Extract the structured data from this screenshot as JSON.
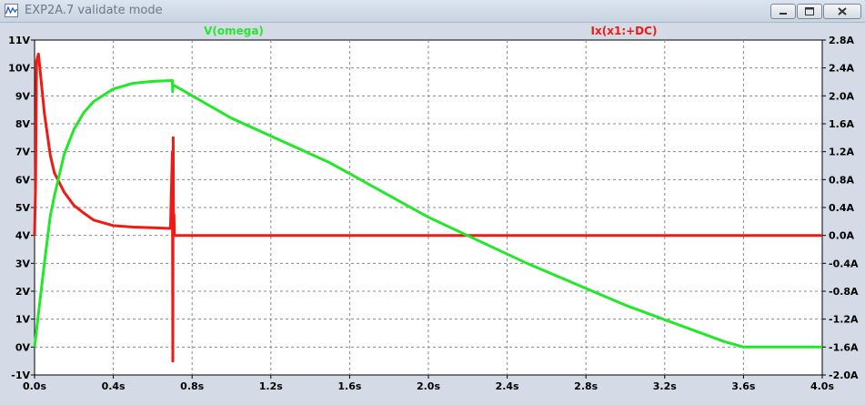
{
  "window": {
    "title": "EXP2A.7 validate mode"
  },
  "colors": {
    "omega": "#22e82a",
    "ix": "#f01a14",
    "grid": "#8a8a8a",
    "background": "#ffffff"
  },
  "icons": {
    "app": "ltspice-waveform-icon",
    "minimize": "minimize-icon",
    "maximize": "maximize-icon",
    "close": "close-icon"
  },
  "chart_data": {
    "type": "line",
    "grid": true,
    "xlim": [
      0,
      4.0
    ],
    "ylim_left": [
      -1,
      11
    ],
    "ylim_right": [
      -2.0,
      2.8
    ],
    "x_ticks": [
      "0.0s",
      "0.4s",
      "0.8s",
      "1.2s",
      "1.6s",
      "2.0s",
      "2.4s",
      "2.8s",
      "3.2s",
      "3.6s",
      "4.0s"
    ],
    "y_left_ticks": [
      "-1V",
      "0V",
      "1V",
      "2V",
      "3V",
      "4V",
      "5V",
      "6V",
      "7V",
      "8V",
      "9V",
      "10V",
      "11V"
    ],
    "y_right_ticks": [
      "-2.0A",
      "-1.6A",
      "-1.2A",
      "-0.8A",
      "-0.4A",
      "0.0A",
      "0.4A",
      "0.8A",
      "1.2A",
      "1.6A",
      "2.0A",
      "2.4A",
      "2.8A"
    ],
    "series": [
      {
        "name": "V(omega)",
        "axis": "left",
        "unit": "V",
        "x": [
          0,
          0.02,
          0.05,
          0.08,
          0.1,
          0.15,
          0.2,
          0.25,
          0.3,
          0.4,
          0.5,
          0.6,
          0.7,
          0.701,
          0.702,
          1.0,
          1.5,
          2.0,
          2.5,
          3.0,
          3.5,
          3.6,
          4.0
        ],
        "values": [
          0,
          1.2,
          3.0,
          4.7,
          5.4,
          6.9,
          7.8,
          8.4,
          8.8,
          9.25,
          9.45,
          9.52,
          9.55,
          9.15,
          9.4,
          8.2,
          6.6,
          4.65,
          3.0,
          1.5,
          0.2,
          0,
          0
        ]
      },
      {
        "name": "Ix(x1:+DC)",
        "axis": "right",
        "unit": "A",
        "x": [
          0,
          0.005,
          0.01,
          0.02,
          0.05,
          0.08,
          0.1,
          0.15,
          0.2,
          0.25,
          0.3,
          0.4,
          0.5,
          0.6,
          0.69,
          0.7,
          0.702,
          0.704,
          0.706,
          0.708,
          0.71,
          0.72,
          1.0,
          2.0,
          3.0,
          4.0
        ],
        "values": [
          0,
          0.7,
          2.5,
          2.6,
          1.75,
          1.15,
          0.9,
          0.62,
          0.43,
          0.32,
          0.22,
          0.14,
          0.12,
          0.11,
          0.1,
          1.2,
          -1.8,
          1.4,
          0.0,
          0.3,
          0.0,
          0.0,
          0.0,
          0.0,
          0.0,
          0.0
        ]
      }
    ]
  }
}
